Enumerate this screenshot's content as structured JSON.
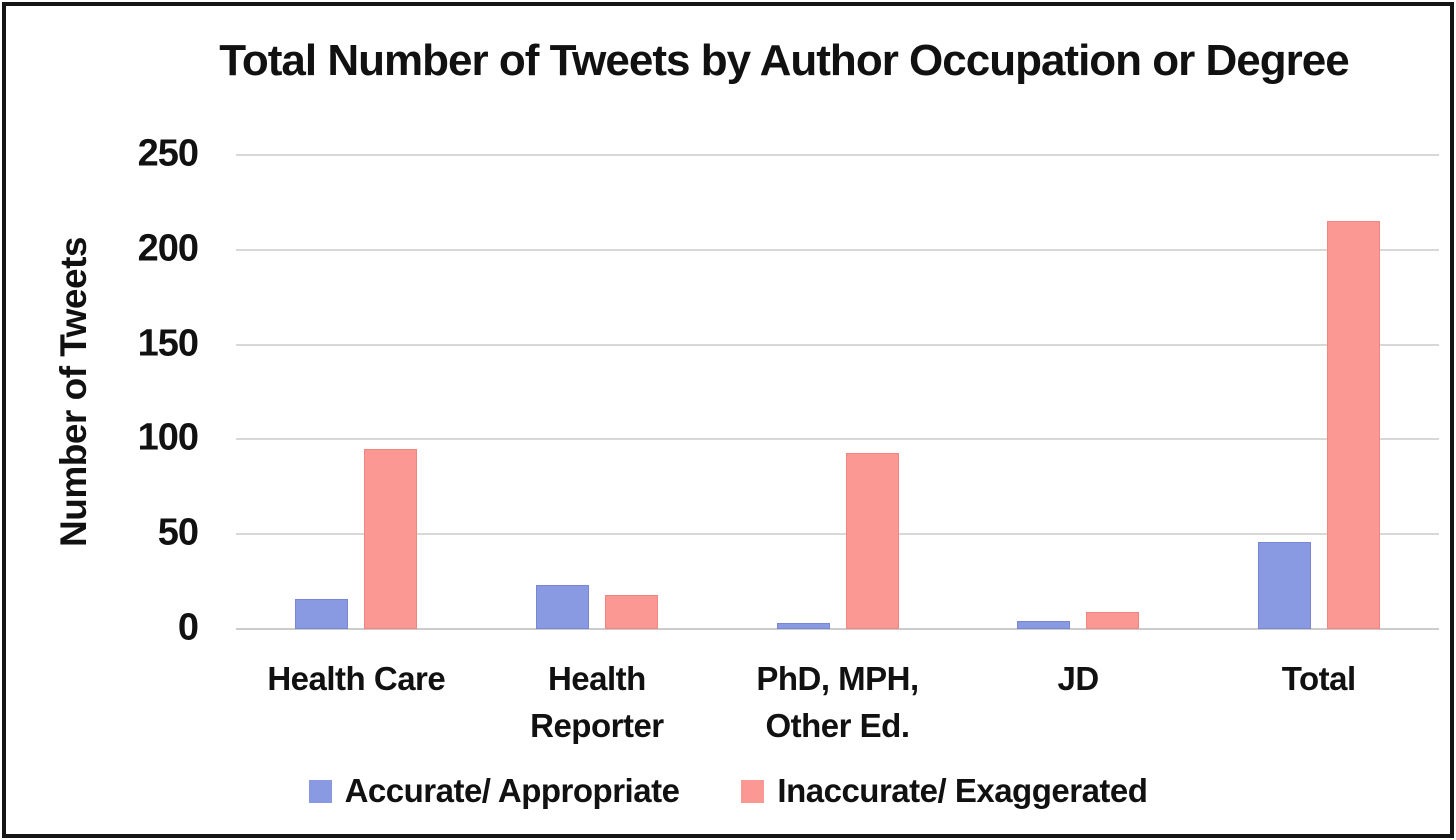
{
  "title": "Total Number of Tweets by Author Occupation or Degree",
  "ylabel": "Number of Tweets",
  "colors": {
    "accurate": "#8a9ae2",
    "accurate_border": "#7887d4",
    "inaccurate": "#fb9893",
    "inaccurate_border": "#f1857f",
    "gridline": "#d8d8d8",
    "baseline": "#cccccc",
    "text": "#111111"
  },
  "chart_data": {
    "type": "bar",
    "title": "Total Number of Tweets by Author Occupation or Degree",
    "xlabel": "",
    "ylabel": "Number of Tweets",
    "categories": [
      "Health Care",
      "Health\nReporter",
      "PhD, MPH,\nOther Ed.",
      "JD",
      "Total"
    ],
    "series": [
      {
        "name": "Accurate/ Appropriate",
        "color": "#8a9ae2",
        "border": "#7887d4",
        "values": [
          16,
          23,
          3,
          4,
          46
        ]
      },
      {
        "name": "Inaccurate/ Exaggerated",
        "color": "#fb9893",
        "border": "#f1857f",
        "values": [
          95,
          18,
          93,
          9,
          215
        ]
      }
    ],
    "ylim": [
      0,
      250
    ],
    "yticks": [
      0,
      50,
      100,
      150,
      200,
      250
    ],
    "grid": true,
    "legend_position": "bottom"
  }
}
